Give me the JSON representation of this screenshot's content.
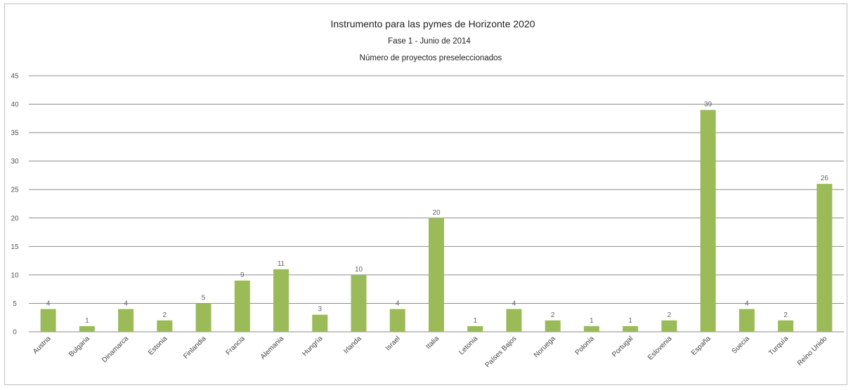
{
  "chart_data": {
    "type": "bar",
    "title": "Instrumento para las pymes de Horizonte 2020",
    "subtitle_1": "Fase 1 - Junio de 2014",
    "subtitle_2": "Número de proyectos preseleccionados",
    "xlabel": "",
    "ylabel": "",
    "ylim": [
      0,
      45
    ],
    "yticks": [
      0,
      5,
      10,
      15,
      20,
      25,
      30,
      35,
      40,
      45
    ],
    "grid": true,
    "legend": "none",
    "bar_color": "#9bbb59",
    "categories": [
      "Austria",
      "Bulgaria",
      "Dinamarca",
      "Estonia",
      "Finlandia",
      "Francia",
      "Alemania",
      "Hungría",
      "Irlanda",
      "Israel",
      "Italia",
      "Letonia",
      "Países Bajos",
      "Noruega",
      "Polonia",
      "Portugal",
      "Eslovenia",
      "España",
      "Suecia",
      "Turquía",
      "Reino Unido"
    ],
    "values": [
      4,
      1,
      4,
      2,
      5,
      9,
      11,
      3,
      10,
      4,
      20,
      1,
      4,
      2,
      1,
      1,
      2,
      39,
      4,
      2,
      26
    ]
  }
}
